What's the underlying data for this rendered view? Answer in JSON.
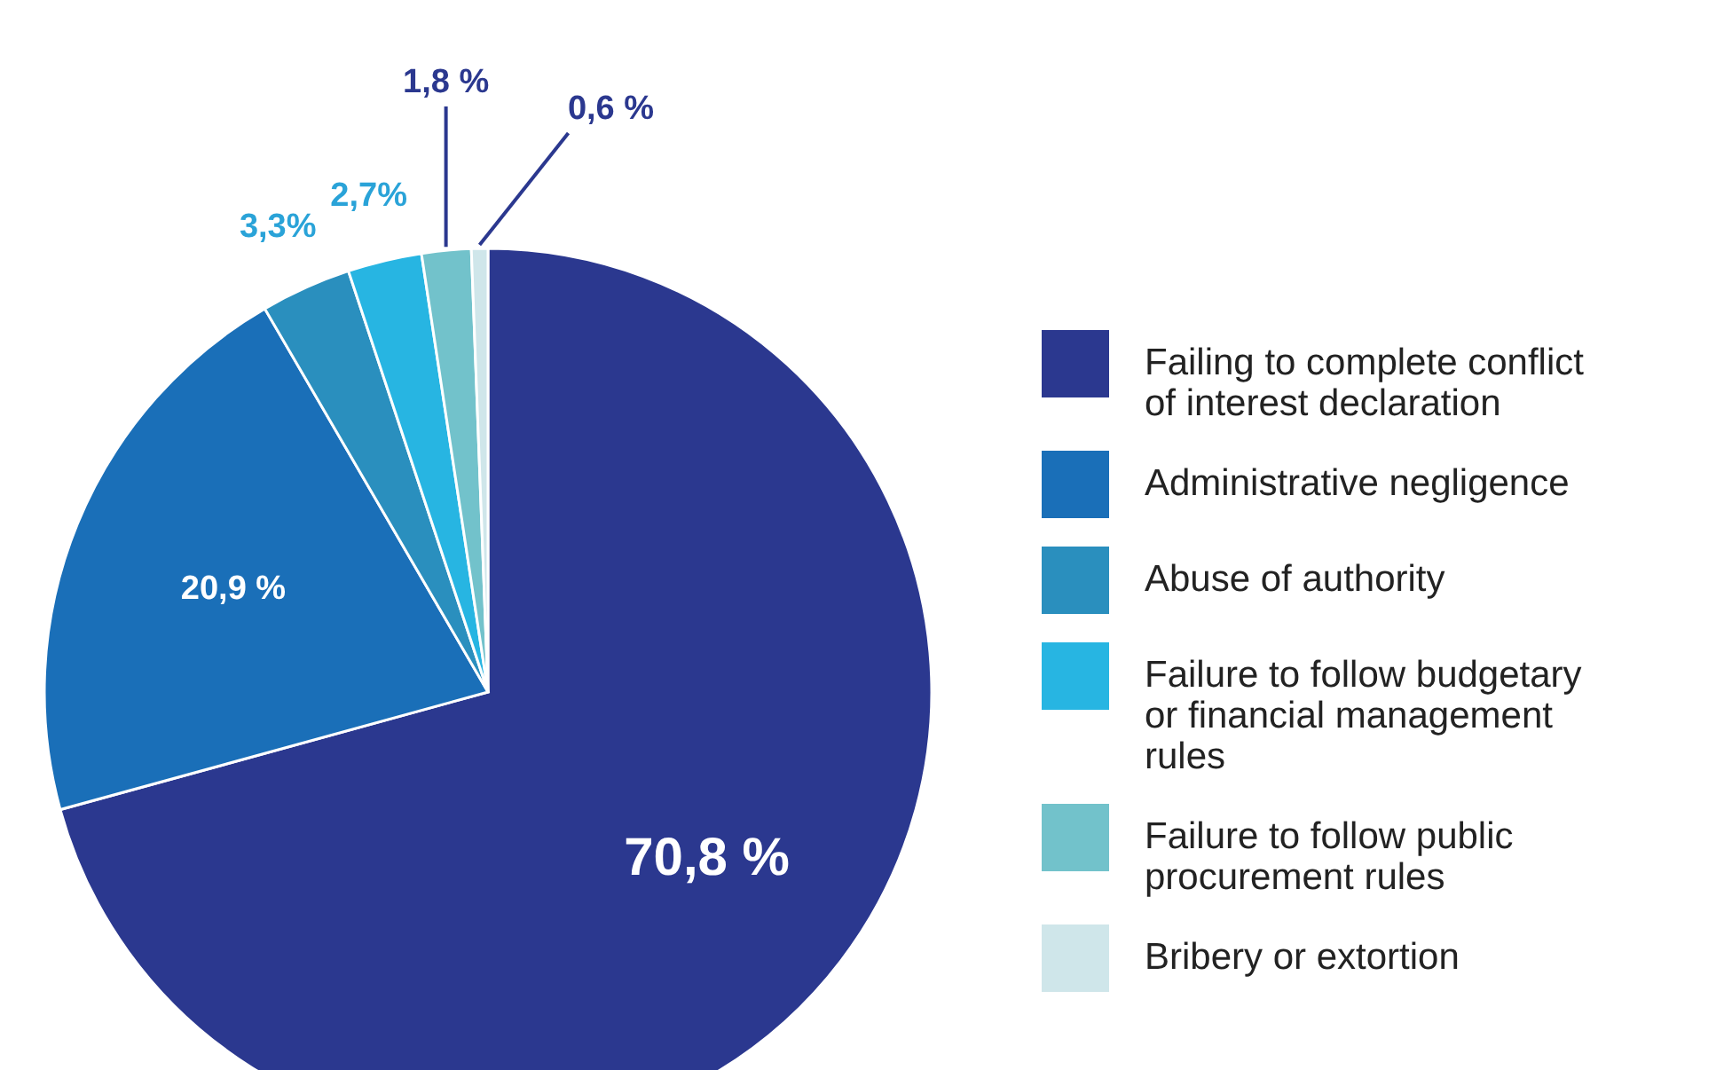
{
  "chart_data": {
    "type": "pie",
    "categories": [
      "Failing to complete conflict of interest declaration",
      "Administrative negligence",
      "Abuse of authority",
      "Failure to follow budgetary or financial management rules",
      "Failure to follow public procurement rules",
      "Bribery or extortion"
    ],
    "values": [
      70.8,
      20.9,
      3.3,
      2.7,
      1.8,
      0.6
    ],
    "value_labels": [
      "70,8 %",
      "20,9 %",
      "3,3%",
      "2,7%",
      "1,8 %",
      "0,6 %"
    ],
    "colors": [
      "#2b388f",
      "#1a6fb8",
      "#2a8fbe",
      "#27b5e2",
      "#72c2cb",
      "#cfe6ea"
    ],
    "legend": "right"
  }
}
